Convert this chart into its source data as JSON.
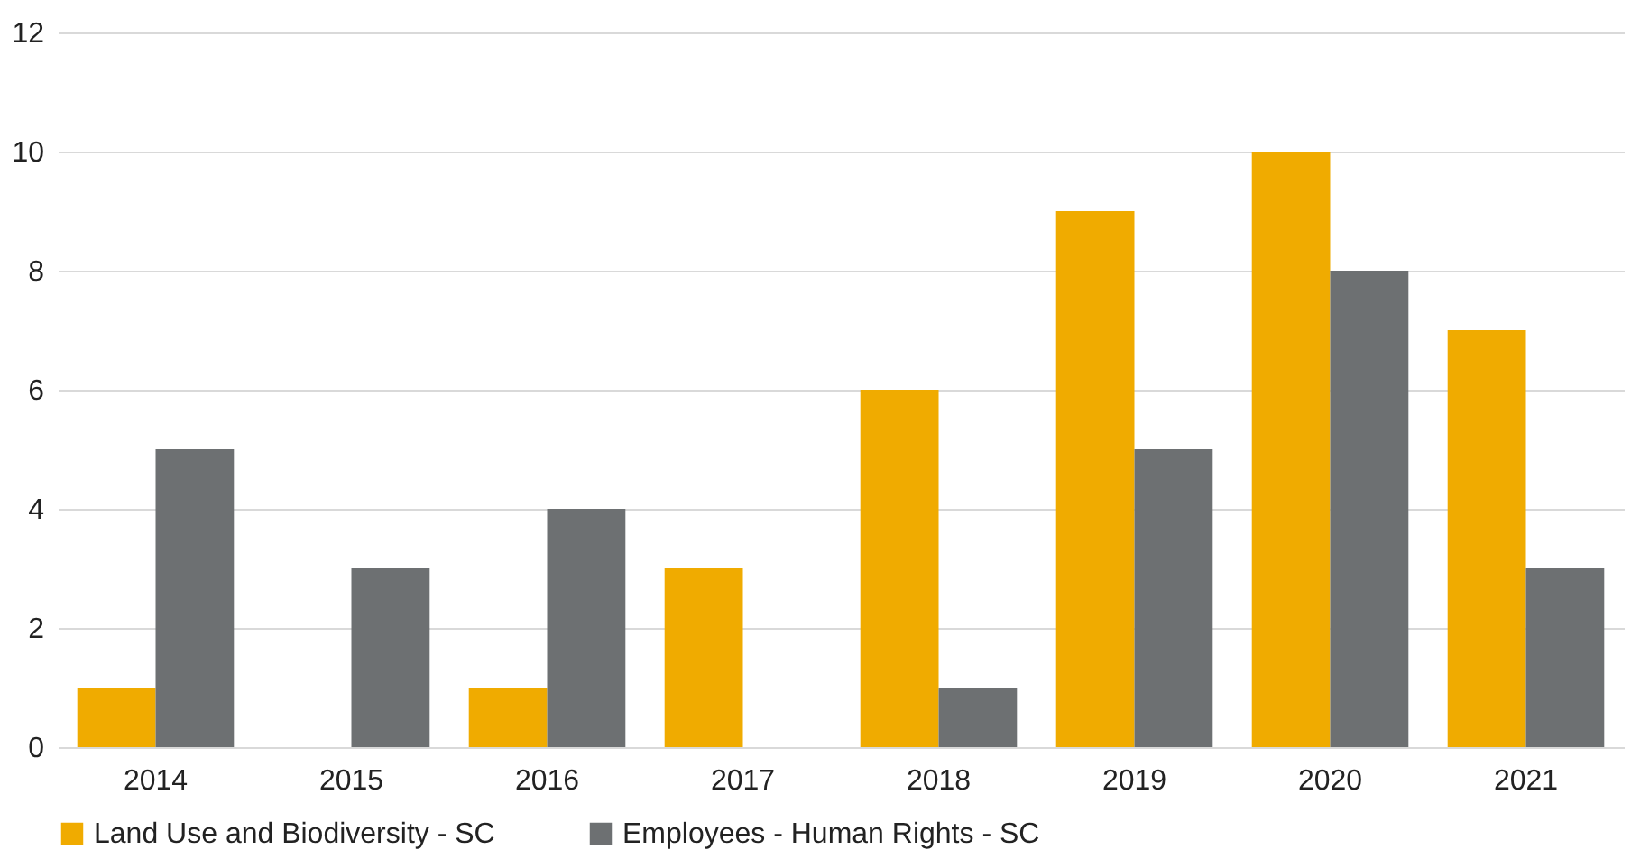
{
  "chart_data": {
    "type": "bar",
    "categories": [
      "2014",
      "2015",
      "2016",
      "2017",
      "2018",
      "2019",
      "2020",
      "2021"
    ],
    "series": [
      {
        "name": "Land Use and Biodiversity - SC",
        "color": "#f0ab00",
        "values": [
          1,
          0,
          1,
          3,
          6,
          9,
          10,
          7
        ]
      },
      {
        "name": "Employees - Human Rights - SC",
        "color": "#6d7072",
        "values": [
          5,
          3,
          4,
          0,
          1,
          5,
          8,
          3
        ]
      }
    ],
    "ylim": [
      0,
      12
    ],
    "yticks": [
      0,
      2,
      4,
      6,
      8,
      10,
      12
    ],
    "grid": "y",
    "legend": "bottom"
  }
}
